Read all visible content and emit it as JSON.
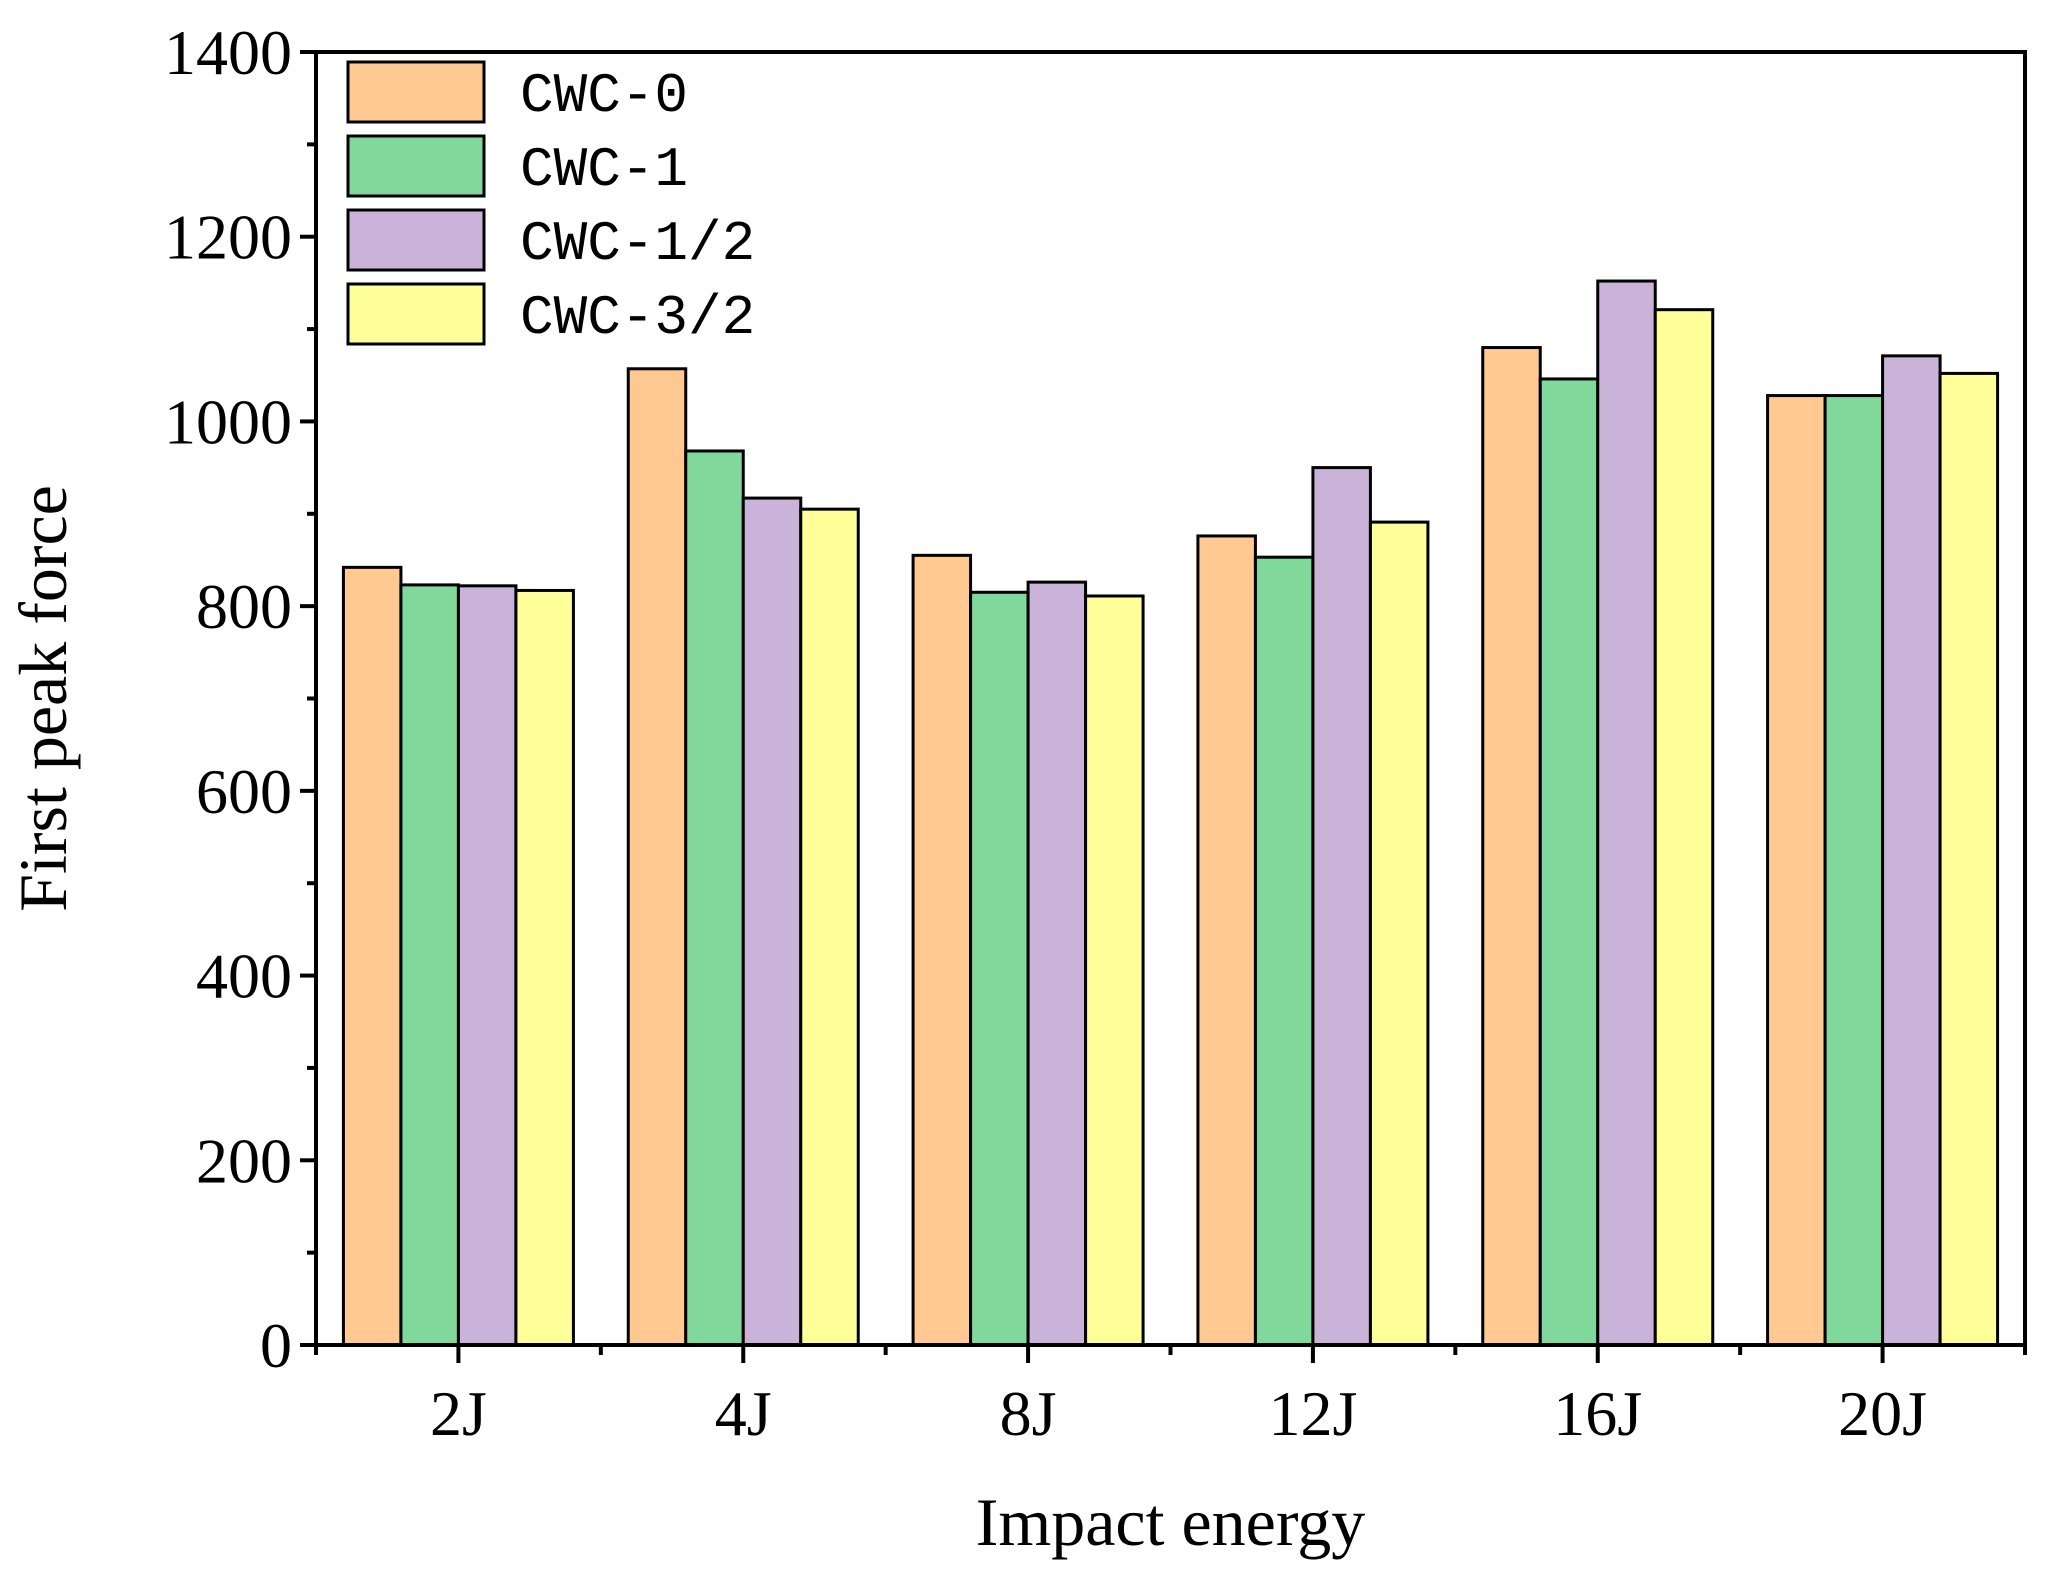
{
  "chart_data": {
    "type": "bar",
    "title": "",
    "xlabel": "Impact energy",
    "ylabel": "First peak force",
    "categories": [
      "2J",
      "4J",
      "8J",
      "12J",
      "16J",
      "20J"
    ],
    "ylim": [
      0,
      1400
    ],
    "yticks": [
      "0",
      "200",
      "400",
      "600",
      "800",
      "1000",
      "1200",
      "1400"
    ],
    "legend_position": "top-left",
    "grid": false,
    "series": [
      {
        "name": "CWC-0",
        "color": "#FFC991",
        "values": [
          842,
          1057,
          855,
          876,
          1080,
          1028
        ]
      },
      {
        "name": "CWC-1",
        "color": "#80D99A",
        "values": [
          823,
          968,
          815,
          853,
          1046,
          1028
        ]
      },
      {
        "name": "CWC-1/2",
        "color": "#C9B3D9",
        "values": [
          822,
          917,
          826,
          950,
          1152,
          1071
        ]
      },
      {
        "name": "CWC-3/2",
        "color": "#FFFF99",
        "values": [
          817,
          905,
          811,
          891,
          1121,
          1052
        ]
      }
    ]
  }
}
